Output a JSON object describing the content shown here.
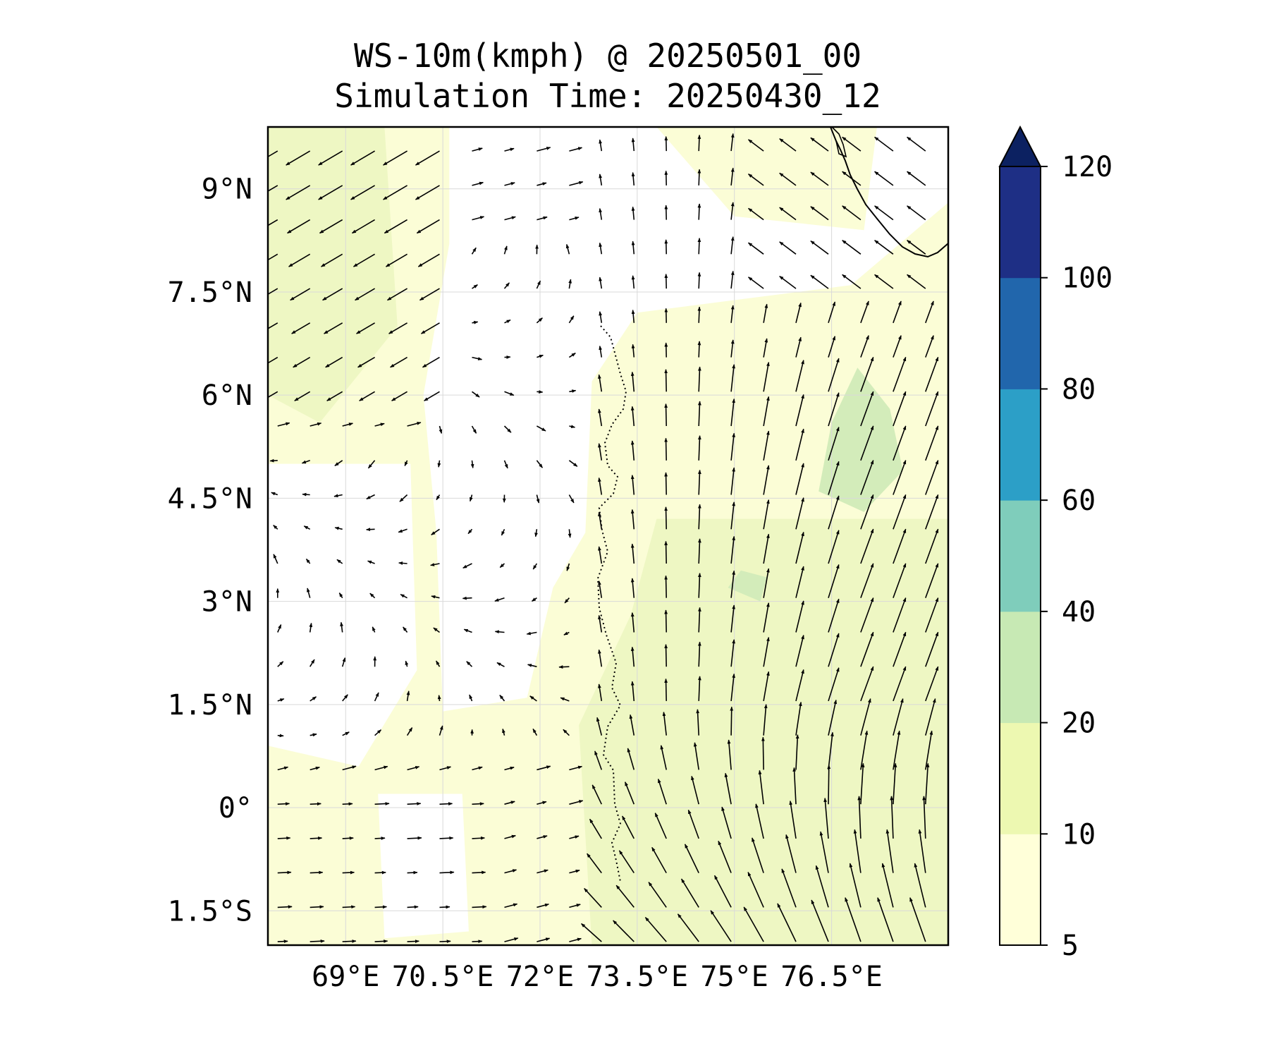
{
  "title": {
    "line1": "WS-10m(kmph) @ 20250501_00",
    "line2": "Simulation Time: 20250430_12"
  },
  "map": {
    "lon_range": [
      67.8,
      78.3
    ],
    "lat_range": [
      -2.0,
      9.9
    ],
    "x_ticks": [
      {
        "value": 69.0,
        "label": "69°E"
      },
      {
        "value": 70.5,
        "label": "70.5°E"
      },
      {
        "value": 72.0,
        "label": "72°E"
      },
      {
        "value": 73.5,
        "label": "73.5°E"
      },
      {
        "value": 75.0,
        "label": "75°E"
      },
      {
        "value": 76.5,
        "label": "76.5°E"
      }
    ],
    "y_ticks": [
      {
        "value": 9.0,
        "label": "9°N"
      },
      {
        "value": 7.5,
        "label": "7.5°N"
      },
      {
        "value": 6.0,
        "label": "6°N"
      },
      {
        "value": 4.5,
        "label": "4.5°N"
      },
      {
        "value": 3.0,
        "label": "3°N"
      },
      {
        "value": 1.5,
        "label": "1.5°N"
      },
      {
        "value": 0.0,
        "label": "0°"
      },
      {
        "value": -1.5,
        "label": "1.5°S"
      }
    ],
    "gridlines": true,
    "features": [
      "India coastline (southern tip, top-right)",
      "Maldives atolls (dotted outlines)"
    ]
  },
  "colorbar": {
    "levels": [
      5,
      10,
      20,
      40,
      60,
      80,
      100,
      120
    ],
    "labels": [
      "5",
      "10",
      "20",
      "40",
      "60",
      "80",
      "100",
      "120"
    ],
    "colors": [
      "#ffffd9",
      "#edf8b1",
      "#c7e9b4",
      "#7fcdbb",
      "#2c9fc7",
      "#2166ac",
      "#1e2f85"
    ],
    "extend_color": "#0c2161",
    "extend": "max",
    "orientation": "vertical",
    "placement": "right"
  },
  "colors": {
    "background_fill": "#fbfdd6",
    "calm_fill": "#ffffff",
    "moderate_fill": "#eef7c3",
    "strong_fill": "#d3ecba",
    "arrow": "#000000"
  },
  "chart_data": {
    "type": "heatmap",
    "variable": "WS-10m(kmph)",
    "valid_time": "20250501_00",
    "simulation_time": "20250430_12",
    "description_of_field": "Calm winds (<5 kmph) over western-central region (~70–72.5°E, 1–8°N); 10–20 kmph over eastern half with southeasterly flow south of equator veering to south-southeasterly/southerly near 76–77°E; northwesterly flow in the northwest corner; scattered 20–30 kmph patches near 76.5–77°E, 4–6°N.",
    "approx_regions_kmph": [
      {
        "region": "west-central calm zone",
        "lon": [
          70.5,
          72.5
        ],
        "lat": [
          0.5,
          8.5
        ],
        "speed_range": [
          0,
          5
        ]
      },
      {
        "region": "northwest corner",
        "lon": [
          67.8,
          70.0
        ],
        "lat": [
          6.5,
          9.9
        ],
        "speed_range": [
          10,
          20
        ]
      },
      {
        "region": "east / southeast",
        "lon": [
          74.0,
          78.3
        ],
        "lat": [
          -2.0,
          4.0
        ],
        "speed_range": [
          10,
          20
        ]
      },
      {
        "region": "east maxima patches",
        "lon": [
          76.3,
          77.5
        ],
        "lat": [
          4.0,
          6.5
        ],
        "speed_range": [
          20,
          30
        ]
      }
    ]
  }
}
